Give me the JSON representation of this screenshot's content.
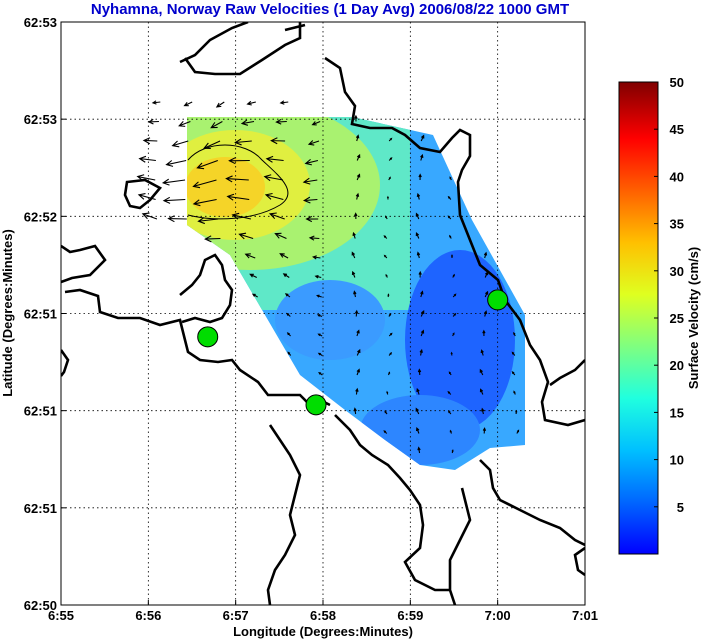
{
  "colors": {
    "title": "#0000cc",
    "coast": "#000000",
    "grid": "#000000",
    "site": "#00dd00"
  },
  "chart_data": {
    "type": "contour+vector",
    "title": "Nyhamna, Norway Raw Velocities (1 Day Avg) 2006/08/22 1000 GMT",
    "xlabel": "Longitude (Degrees:Minutes)",
    "ylabel": "Latitude (Degrees:Minutes)",
    "colorbar_label": "Surface Velocity (cm/s)",
    "x_ticks": [
      {
        "v": 0,
        "label": "6:55"
      },
      {
        "v": 1,
        "label": "6:56"
      },
      {
        "v": 2,
        "label": "6:57"
      },
      {
        "v": 3,
        "label": "6:58"
      },
      {
        "v": 4,
        "label": "6:59"
      },
      {
        "v": 5,
        "label": "7:00"
      },
      {
        "v": 6,
        "label": "7:01"
      }
    ],
    "y_ticks": [
      {
        "v": 0,
        "label": "62:50"
      },
      {
        "v": 1,
        "label": "62:51"
      },
      {
        "v": 2,
        "label": "62:51"
      },
      {
        "v": 3,
        "label": "62:51"
      },
      {
        "v": 4,
        "label": "62:52"
      },
      {
        "v": 5,
        "label": "62:53"
      },
      {
        "v": 6,
        "label": "62:53"
      }
    ],
    "xlim": [
      0,
      6
    ],
    "ylim": [
      0,
      6
    ],
    "clim": [
      0,
      50
    ],
    "colorbar_ticks": [
      {
        "v": 5,
        "label": "5"
      },
      {
        "v": 10,
        "label": "10"
      },
      {
        "v": 15,
        "label": "15"
      },
      {
        "v": 20,
        "label": "20"
      },
      {
        "v": 25,
        "label": "25"
      },
      {
        "v": 30,
        "label": "30"
      },
      {
        "v": 35,
        "label": "35"
      },
      {
        "v": 40,
        "label": "40"
      },
      {
        "v": 45,
        "label": "45"
      },
      {
        "v": 50,
        "label": "50"
      }
    ],
    "grid": true,
    "radar_sites": [
      {
        "x": 1.68,
        "y": 2.76
      },
      {
        "x": 2.92,
        "y": 2.06
      },
      {
        "x": 5.0,
        "y": 3.14
      }
    ]
  }
}
